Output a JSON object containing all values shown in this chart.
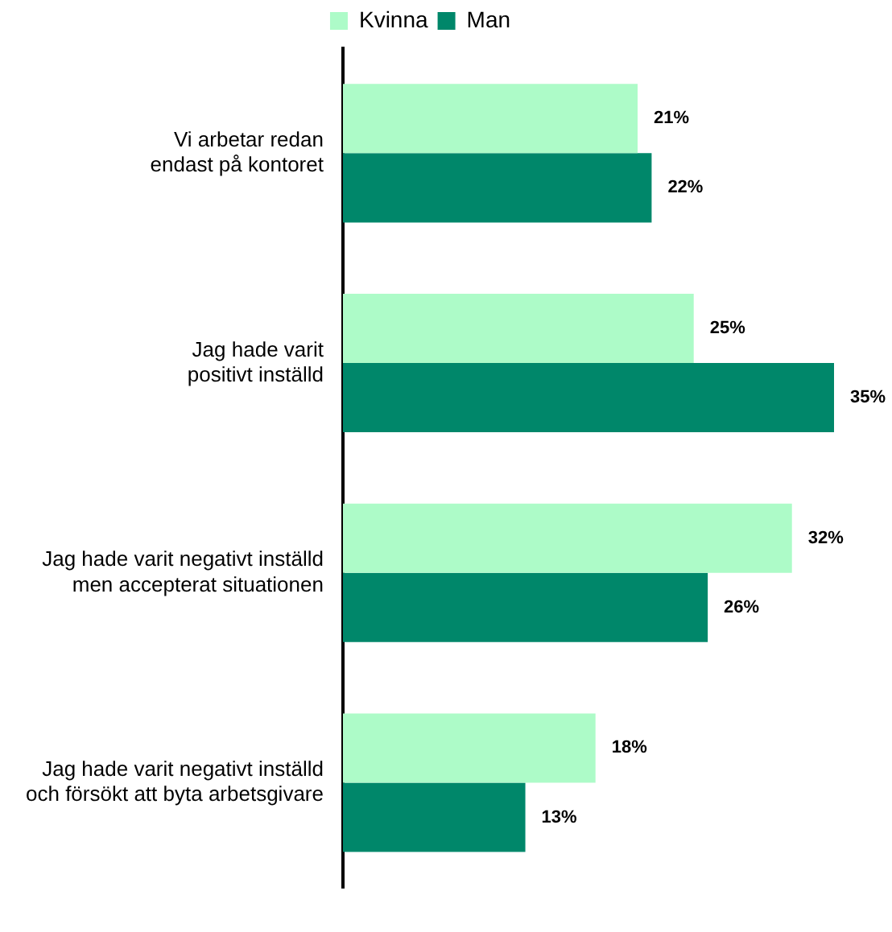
{
  "chart_data": {
    "type": "bar",
    "orientation": "horizontal",
    "categories": [
      "Vi arbetar redan endast på kontoret",
      "Jag hade varit positivt inställd",
      "Jag hade varit negativt inställd men accepterat situationen",
      "Jag hade varit negativt inställd och försökt att byta arbetsgivare"
    ],
    "series": [
      {
        "name": "Kvinna",
        "color": "#adfbc8",
        "values": [
          21,
          25,
          32,
          18
        ],
        "value_labels": [
          "21%",
          "25%",
          "32%",
          "18%"
        ]
      },
      {
        "name": "Man",
        "color": "#00876a",
        "values": [
          22,
          35,
          26,
          13
        ],
        "value_labels": [
          "22%",
          "35%",
          "26%",
          "13%"
        ]
      }
    ],
    "legend": "top"
  }
}
